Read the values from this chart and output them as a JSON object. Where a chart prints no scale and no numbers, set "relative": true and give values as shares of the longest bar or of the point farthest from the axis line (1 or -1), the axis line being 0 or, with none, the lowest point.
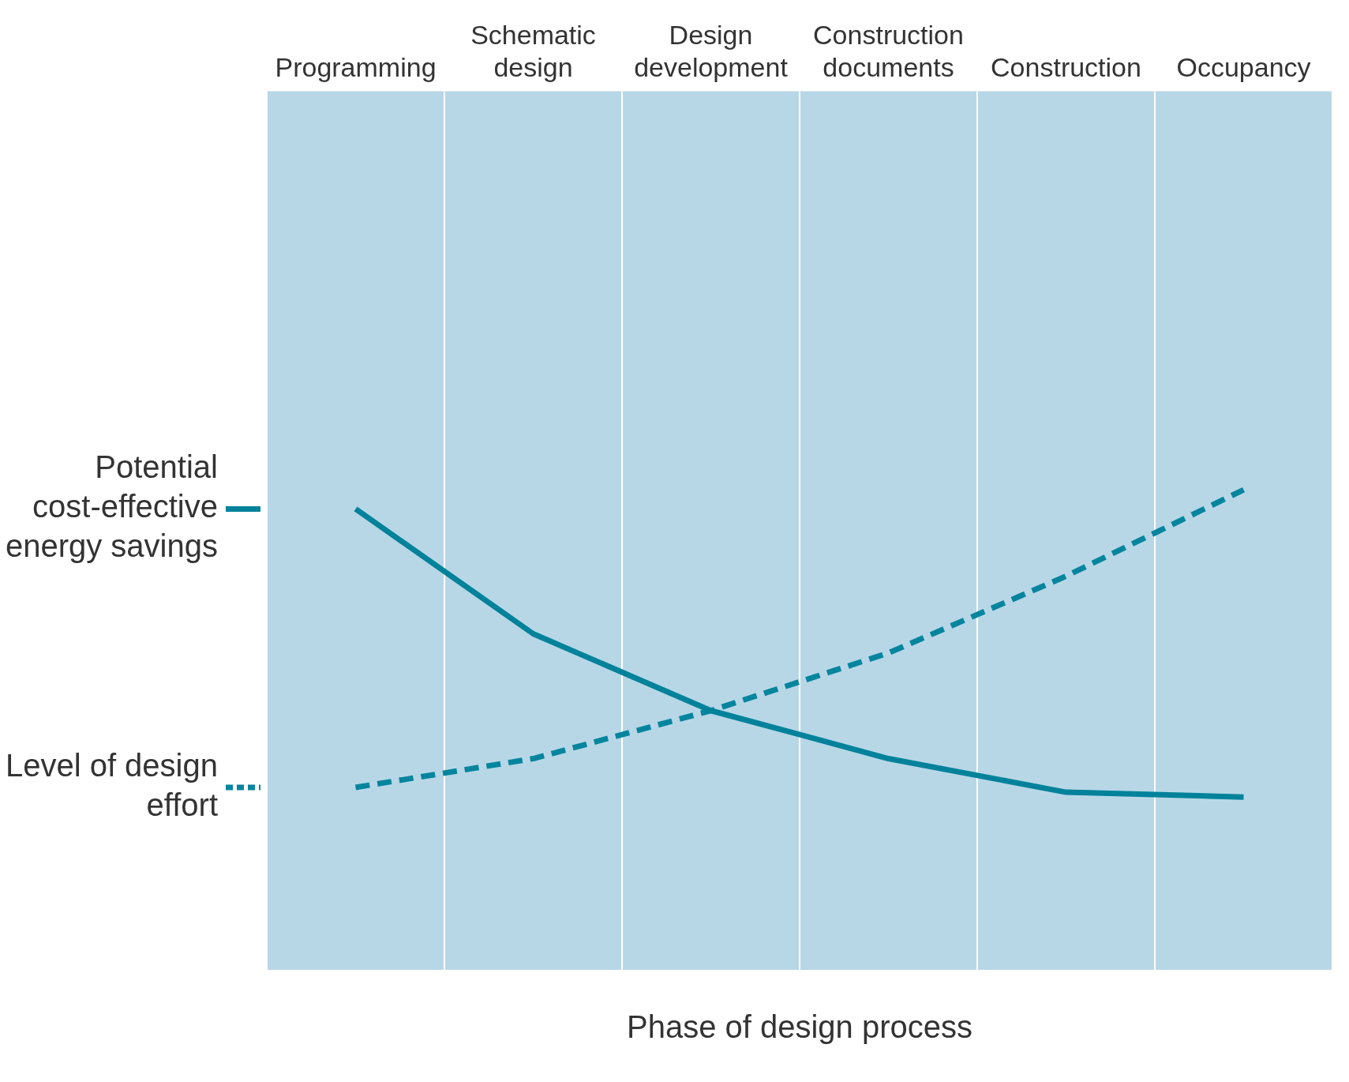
{
  "chart_data": {
    "type": "line",
    "relative": true,
    "annotations": [
      "Phase of design process"
    ],
    "categories": [
      "Programming",
      "Schematic design",
      "Design development",
      "Construction documents",
      "Construction",
      "Occupancy"
    ],
    "series": [
      {
        "name": "Potential cost-effective energy savings",
        "color": "#00829a",
        "values": [
          0.96,
          0.7,
          0.54,
          0.44,
          0.37,
          0.36
        ]
      },
      {
        "name": "Level of design effort",
        "color": "#04859d",
        "line_style": "dashed",
        "values": [
          0.38,
          0.44,
          0.54,
          0.66,
          0.82,
          1
        ]
      }
    ],
    "grid": "x",
    "legend": "left",
    "marker": "none",
    "line_style": "solid"
  }
}
